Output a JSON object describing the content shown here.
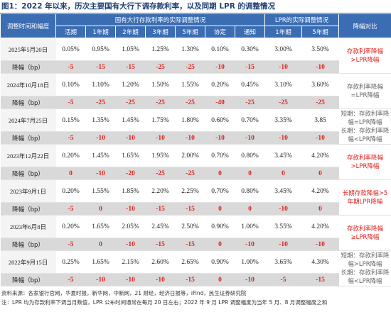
{
  "header": {
    "title": "图1：2022 年以来，历次主要国有大行下调存款利率，以及同期 LPR 的调整情况"
  },
  "table": {
    "corner": "调整时间和幅度",
    "group_deposit": "国有大行存款利率的实际调整情况",
    "group_lpr": "LPR的实际调整情况",
    "compare_header": "降幅对比",
    "columns": [
      "活期",
      "1年期",
      "2年期",
      "3年期",
      "5年期",
      "协定",
      "通知",
      "1年期",
      "5年期"
    ],
    "decrease_label": "降幅（bp）",
    "rows": [
      {
        "date": "2025年5月20日",
        "rates": [
          "0.05%",
          "0.95%",
          "1.05%",
          "1.25%",
          "1.30%",
          "0.10%",
          "0.30%",
          "3.00%",
          "3.50%"
        ],
        "decreases": [
          -5,
          -15,
          -15,
          -25,
          -25,
          -10,
          -15,
          -10,
          -10
        ],
        "comparison": [
          "存款利率降幅>LPR降幅"
        ],
        "comparison_color": "#e0201c"
      },
      {
        "date": "2024年10月18日",
        "rates": [
          "0.10%",
          "1.10%",
          "1.20%",
          "1.50%",
          "1.55%",
          "0.20%",
          "0.45%",
          "3.10%",
          "3.60%"
        ],
        "decreases": [
          -5,
          -25,
          -25,
          -25,
          -25,
          -40,
          -25,
          -25,
          -25
        ],
        "comparison": [
          "存款利率降幅=LPR降幅"
        ],
        "comparison_color": "#666666"
      },
      {
        "date": "2024年7月25日",
        "rates": [
          "0.15%",
          "1.35%",
          "1.45%",
          "1.75%",
          "1.80%",
          "0.60%",
          "0.70%",
          "3.35%",
          "3.85"
        ],
        "decreases": [
          -5,
          -10,
          -10,
          -10,
          -10,
          -10,
          -10,
          -10,
          -10
        ],
        "comparison": [
          "短期：存款利率降幅=LPR降幅",
          "长期：存款利率降幅<LPR降幅"
        ],
        "comparison_color": "#666666"
      },
      {
        "date": "2023年12月22日",
        "rates": [
          "0.20%",
          "1.45%",
          "1.65%",
          "1.95%",
          "2.00%",
          "0.70%",
          "0.80%",
          "3.45%",
          "4.20%"
        ],
        "decreases": [
          0,
          -10,
          -20,
          -25,
          -25,
          0,
          0,
          0,
          0
        ],
        "comparison": [
          "存款利率降幅>LPR降幅"
        ],
        "comparison_color": "#e0201c"
      },
      {
        "date": "2023年9月1日",
        "rates": [
          "0.20%",
          "1.55%",
          "1.85%",
          "2.20%",
          "2.25%",
          "0.70%",
          "0.80%",
          "3.45%",
          "4.20%"
        ],
        "decreases": [
          -5,
          0,
          -10,
          -15,
          -15,
          0,
          0,
          -10,
          0
        ],
        "comparison": [
          "长期存款降幅>5年期LPR降幅"
        ],
        "comparison_color": "#e0201c"
      },
      {
        "date": "2023年6月8日",
        "rates": [
          "0.20%",
          "1.65%",
          "2.05%",
          "2.45%",
          "2.50%",
          "0.90%",
          "1.00%",
          "3.55%",
          "4.20%"
        ],
        "decreases": [
          -5,
          0,
          -10,
          -15,
          -15,
          0,
          -10,
          -10,
          -10
        ],
        "comparison": [
          "存款利率降幅≥LPR降幅"
        ],
        "comparison_color": "#e0201c"
      },
      {
        "date": "2022年9月15日",
        "rates": [
          "0.25%",
          "1.65%",
          "2.15%",
          "2.60%",
          "2.65%",
          "0.90%",
          "1.00%",
          "3.65%",
          "4.30%"
        ],
        "decreases": [
          -5,
          -10,
          -10,
          -10,
          -15,
          0,
          -10,
          -5,
          -15
        ],
        "comparison": [
          "短期：存款利率降幅>LPR降幅",
          "长期：存款利率降幅<LPR降幅"
        ],
        "comparison_color": "#666666"
      }
    ]
  },
  "footer": {
    "source": "资料来源：各家银行官网，华夏时报，新华网，中新网，21 财经，经济日报等，iFind，民生证券研究院",
    "note": "注：LPR 均为存款利率下调当月数值，LPR 公布时间通常在每月 20 日左右；2022 年 9 月 LPR 调整幅度为当年 5 月、8 月调整幅度之和"
  }
}
